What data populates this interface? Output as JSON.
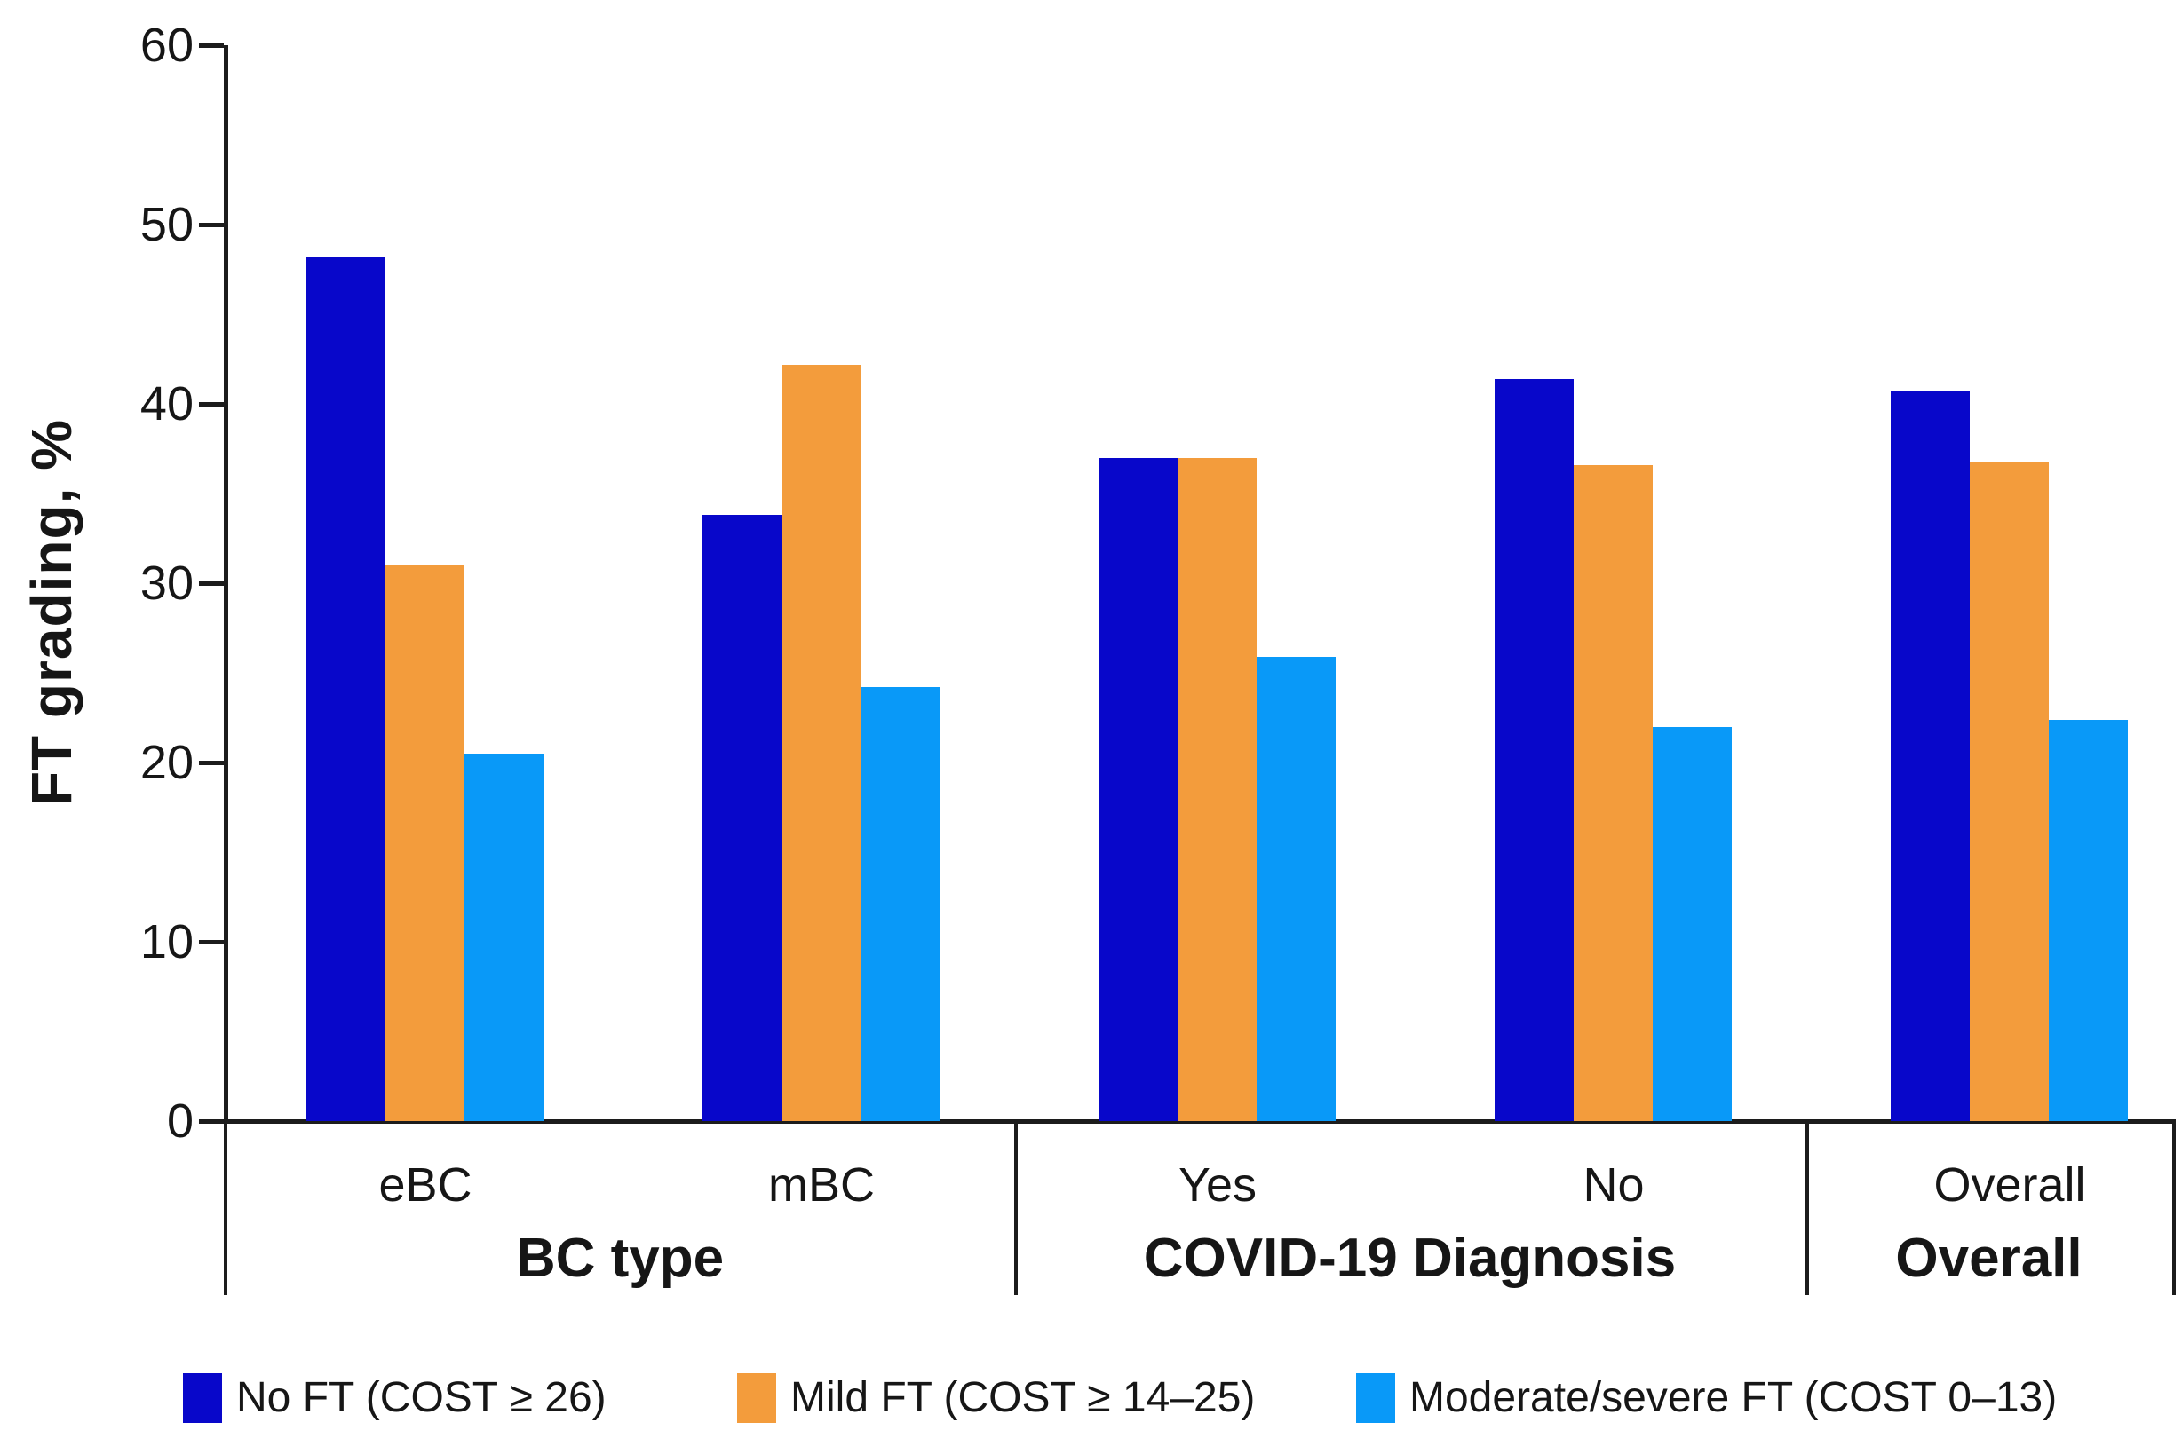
{
  "chart_data": {
    "type": "bar",
    "title": "",
    "ylabel": "FT grading, %",
    "xlabel": "",
    "ylim": [
      0,
      60
    ],
    "yticks": [
      0,
      10,
      20,
      30,
      40,
      50,
      60
    ],
    "grid": false,
    "legend_position": "bottom",
    "categories": [
      "eBC",
      "mBC",
      "Yes",
      "No",
      "Overall"
    ],
    "groups": [
      {
        "title": "BC type",
        "categories": [
          "eBC",
          "mBC"
        ]
      },
      {
        "title": "COVID-19 Diagnosis",
        "categories": [
          "Yes",
          "No"
        ]
      },
      {
        "title": "Overall",
        "categories": [
          "Overall"
        ]
      }
    ],
    "series": [
      {
        "name": "No FT (COST ≥ 26)",
        "color": "#0807CA",
        "values": [
          48.2,
          33.8,
          37.0,
          41.4,
          40.7
        ]
      },
      {
        "name": "Mild FT (COST ≥ 14–25)",
        "color": "#F39C3C",
        "values": [
          31.0,
          42.2,
          37.0,
          36.6,
          36.8
        ]
      },
      {
        "name": "Moderate/severe FT (COST 0–13)",
        "color": "#0999F8",
        "values": [
          20.5,
          24.2,
          25.9,
          22.0,
          22.4
        ]
      }
    ],
    "axis_color": "#1c1c1c"
  }
}
